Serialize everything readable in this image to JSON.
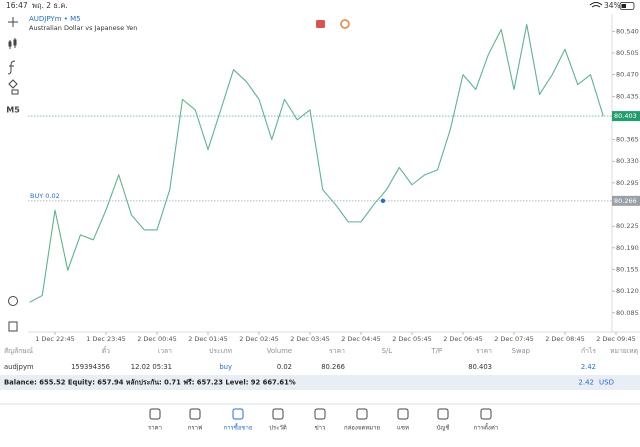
{
  "status_bar": {
    "time": "16:47",
    "date": "พฤ. 2 ธ.ค.",
    "battery": "34%"
  },
  "chart_data": {
    "type": "line",
    "title": "AUDJPYm • M5",
    "subtitle": "Australian Dollar vs Japanese Yen",
    "timeframe": "M5",
    "categories": [
      null,
      null,
      "1 Dec 22:45",
      null,
      null,
      null,
      "1 Dec 23:45",
      null,
      null,
      null,
      "2 Dec 00:45",
      null,
      null,
      null,
      "2 Dec 01:45",
      null,
      null,
      null,
      "2 Dec 02:45",
      null,
      null,
      null,
      "2 Dec 03:45",
      null,
      null,
      null,
      "2 Dec 04:45",
      null,
      null,
      null,
      "2 Dec 05:45",
      null,
      null,
      null,
      "2 Dec 06:45",
      null,
      null,
      null,
      "2 Dec 07:45",
      null,
      null,
      null,
      "2 Dec 08:45",
      null,
      null,
      null,
      "2 Dec 09:45"
    ],
    "series": [
      {
        "name": "AUDJPYm",
        "color": "#5cb58c",
        "values": [
          80.102,
          80.113,
          80.251,
          80.154,
          80.211,
          80.203,
          80.251,
          80.308,
          80.243,
          80.219,
          80.219,
          80.284,
          80.43,
          80.413,
          80.349,
          80.413,
          80.478,
          80.459,
          80.43,
          80.365,
          80.43,
          80.397,
          80.413,
          80.284,
          80.26,
          80.232,
          80.232,
          80.26,
          80.284,
          80.32,
          80.292,
          80.308,
          80.316,
          80.381,
          80.47,
          80.446,
          80.503,
          80.543,
          80.446,
          80.551,
          80.438,
          80.47,
          80.511,
          80.454,
          80.47,
          80.403,
          null
        ]
      }
    ],
    "ylim": [
      80.054,
      80.568
    ],
    "yticks": [
      {
        "value": 80.54,
        "label": "80.540"
      },
      {
        "value": 80.505,
        "label": "80.505"
      },
      {
        "value": 80.47,
        "label": "80.470"
      },
      {
        "value": 80.435,
        "label": "80.435"
      },
      {
        "value": 80.365,
        "label": "80.365"
      },
      {
        "value": 80.33,
        "label": "80.330"
      },
      {
        "value": 80.295,
        "label": "80.295"
      },
      {
        "value": 80.225,
        "label": "80.225"
      },
      {
        "value": 80.19,
        "label": "80.190"
      },
      {
        "value": 80.155,
        "label": "80.155"
      },
      {
        "value": 80.12,
        "label": "80.120"
      },
      {
        "value": 80.085,
        "label": "80.085"
      }
    ],
    "price_lines": [
      {
        "value": 80.403,
        "label": "80.403",
        "color": "#1f9e6e"
      },
      {
        "value": 80.266,
        "label": "80.266",
        "color": "#9aa0a8",
        "annotation": "BUY 0.02"
      }
    ],
    "grid": false
  },
  "table": {
    "headers": [
      "สัญลักษณ์",
      "ตั๋ว",
      "เวลา",
      "ประเภท",
      "Volume",
      "ราคา",
      "S/L",
      "T/P",
      "ราคา",
      "Swap",
      "กำไร",
      "หมายเหตุ"
    ],
    "rows": [
      [
        "audjpym",
        "159394356",
        "12.02 05:31",
        "buy",
        "0.02",
        "80.266",
        "",
        "",
        "80.403",
        "",
        "2.42",
        ""
      ]
    ]
  },
  "summary": {
    "text": "Balance: 655.52 Equity: 657.94 หลักประกัน: 0.71 ฟรี: 657.23 Level: 92 667.61%",
    "profit": "2.42",
    "currency": "USD"
  },
  "tabs": [
    "ราคา",
    "กราฟ",
    "การซื้อขาย",
    "ประวัติ",
    "ข่าว",
    "กล่องจดหมาย",
    "แชท",
    "บัญชี",
    "การตั้งค่า"
  ]
}
